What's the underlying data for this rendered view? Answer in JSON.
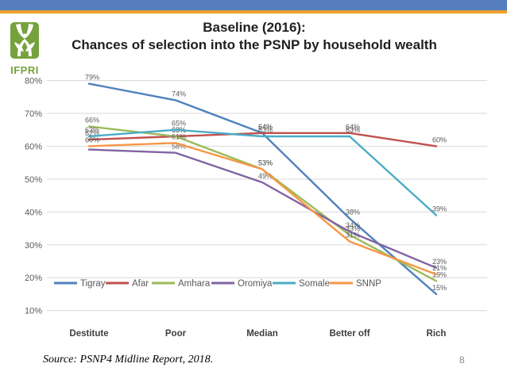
{
  "header": {
    "title_line1": "Baseline (2016):",
    "title_line2": "Chances of selection into the PSNP by household wealth",
    "logo_text": "IFPRI"
  },
  "footer": {
    "source": "Source: PSNP4 Midline Report, 2018.",
    "page_number": "8"
  },
  "colors": {
    "top_bar": "#567EBE",
    "accent_line": "#EDA12B",
    "logo_green": "#76A23D",
    "grid": "#D9D9D9",
    "tick_text": "#595959",
    "data_label_text": "#595959",
    "axis_text": "#404040",
    "legend_text": "#595959"
  },
  "chart_data": {
    "type": "line",
    "title": "",
    "xlabel": "",
    "ylabel": "",
    "categories": [
      "Destitute",
      "Poor",
      "Median",
      "Better off",
      "Rich"
    ],
    "yticks": [
      "80%",
      "70%",
      "60%",
      "50%",
      "40%",
      "30%",
      "20%",
      "10%"
    ],
    "ylim": [
      10,
      80
    ],
    "grid": true,
    "legend_position": "inside-left",
    "series": [
      {
        "name": "Tigray",
        "color": "#4F81BD",
        "values": [
          79,
          74,
          64,
          38,
          15
        ],
        "labels": [
          "79%",
          "74%",
          "64%",
          "38%",
          "15%"
        ]
      },
      {
        "name": "Afar",
        "color": "#C0504D",
        "values": [
          62,
          63,
          64,
          64,
          60
        ],
        "labels": [
          "62%",
          "63%",
          "64%",
          "64%",
          "60%"
        ]
      },
      {
        "name": "Amhara",
        "color": "#9BBB59",
        "values": [
          66,
          63,
          53,
          33,
          19
        ],
        "labels": [
          "66%",
          "63%",
          "53%",
          "33%",
          "19%"
        ]
      },
      {
        "name": "Oromiya",
        "color": "#8064A2",
        "values": [
          59,
          58,
          49,
          34,
          23
        ],
        "labels": [
          null,
          "58%",
          "49%",
          "34%",
          "23%"
        ]
      },
      {
        "name": "Somale",
        "color": "#4BACC6",
        "values": [
          63,
          65,
          63,
          63,
          39
        ],
        "labels": [
          "63%",
          "65%",
          "63%",
          "63%",
          "39%"
        ]
      },
      {
        "name": "SNNP",
        "color": "#F79646",
        "values": [
          60,
          61,
          53,
          31,
          21
        ],
        "labels": [
          "60%",
          "61%",
          "53%",
          "31%",
          "21%"
        ]
      }
    ]
  }
}
